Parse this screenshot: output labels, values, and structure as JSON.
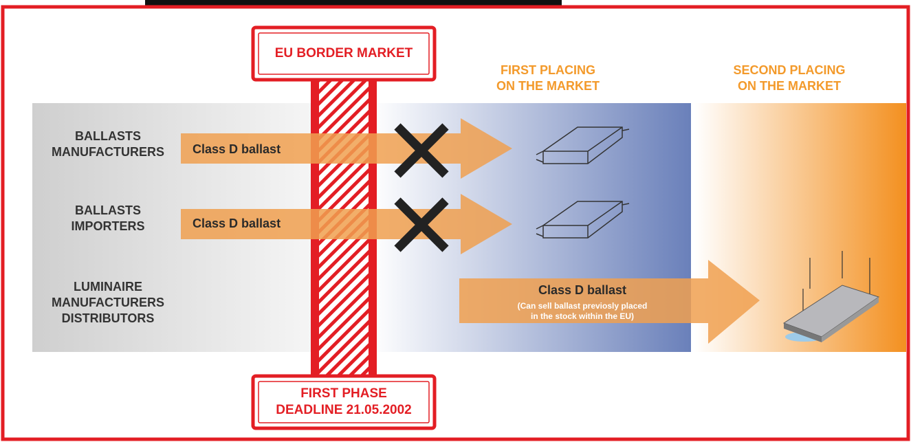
{
  "border": {
    "title": "EU BORDER MARKET"
  },
  "deadline": {
    "lines": [
      "FIRST PHASE",
      "DEADLINE 21.05.2002"
    ]
  },
  "zones": [
    {
      "lines": [
        "FIRST PLACING",
        "ON THE MARKET"
      ]
    },
    {
      "lines": [
        "SECOND PLACING",
        "ON THE MARKET"
      ]
    }
  ],
  "rows": [
    {
      "actor": [
        "BALLASTS",
        "MANUFACTURERS"
      ],
      "arrow": "Class D ballast"
    },
    {
      "actor": [
        "BALLASTS",
        "IMPORTERS"
      ],
      "arrow": "Class D ballast"
    },
    {
      "actor": [
        "LUMINAIRE",
        "MANUFACTURERS",
        "DISTRIBUTORS"
      ],
      "arrow": "Class D ballast",
      "note": [
        "(Can sell ballast previosly placed",
        "in the stock within the EU)"
      ]
    }
  ]
}
